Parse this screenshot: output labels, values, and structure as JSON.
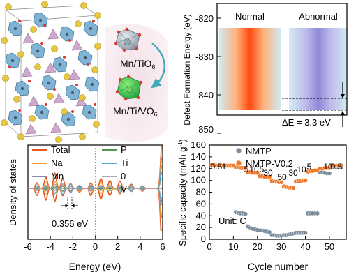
{
  "structure_panel": {
    "label_top": "Mn/TiO",
    "label_top_sub": "6",
    "label_bottom": "Mn/Ti/VO",
    "label_bottom_sub": "6",
    "colors": {
      "octahedron": "#7fb4d6",
      "tetrahedron": "#c9a0c8",
      "sodium": "#e7c840",
      "oxygen": "#d93a2b",
      "highlight": "#33b34a"
    }
  },
  "energy_panel": {
    "ylabel": "Defect Formation Energy (eV)",
    "yticks": [
      "-820",
      "-830",
      "-840",
      "-850"
    ],
    "bar_left_label": "Normal",
    "bar_right_label": "Abnormal",
    "delta_label": "ΔE = 3.3 eV",
    "colors": {
      "normal": "#ff5a1f",
      "abnormal": "#9a95dc",
      "edge": "#cfe9f3"
    }
  },
  "chart_data": [
    {
      "type": "line",
      "xlabel": "Energy (eV)",
      "ylabel": "Density of states",
      "xlim": [
        -6,
        6
      ],
      "xticks": [
        "-6",
        "-4",
        "-2",
        "0",
        "2",
        "4",
        "6"
      ],
      "legend": [
        {
          "name": "Total",
          "color": "#e8571c"
        },
        {
          "name": "Na",
          "color": "#f0a030"
        },
        {
          "name": "Mn",
          "color": "#8a8aa8"
        },
        {
          "name": "P",
          "color": "#4a9a4a"
        },
        {
          "name": "Ti",
          "color": "#4aa8e0"
        },
        {
          "name": "0",
          "color": "#aaaaaa"
        },
        {
          "name": "V",
          "color": "#e8c850"
        }
      ],
      "annotation": "0.356 eV"
    },
    {
      "type": "scatter",
      "xlabel": "Cycle number",
      "ylabel": "Specific capacity (mAh g",
      "ylabel_sup": "-1",
      "ylabel_end": ")",
      "xlim": [
        0,
        57
      ],
      "ylim": [
        0,
        160
      ],
      "xticks": [
        0,
        10,
        20,
        30,
        40,
        50
      ],
      "yticks": [
        0,
        20,
        40,
        60,
        80,
        100,
        120,
        140,
        160
      ],
      "unit_label": "Unit: C",
      "rate_labels": [
        "0.5",
        "1",
        "5",
        "10",
        "5",
        "30",
        "50",
        "30",
        "10",
        "5",
        "10",
        "0.5"
      ],
      "series": [
        {
          "name": "NMTP",
          "color": "#7b8c9c",
          "points": [
            [
              11,
              46
            ],
            [
              12,
              45
            ],
            [
              13,
              44
            ],
            [
              14,
              44
            ],
            [
              15,
              43
            ],
            [
              16,
              22
            ],
            [
              17,
              19
            ],
            [
              18,
              18
            ],
            [
              19,
              17
            ],
            [
              20,
              16
            ],
            [
              21,
              15
            ],
            [
              22,
              15
            ],
            [
              23,
              14
            ],
            [
              24,
              13
            ],
            [
              25,
              12
            ],
            [
              26,
              7
            ],
            [
              27,
              7
            ],
            [
              28,
              6
            ],
            [
              29,
              6
            ],
            [
              30,
              6
            ],
            [
              31,
              7
            ],
            [
              32,
              7
            ],
            [
              33,
              8
            ],
            [
              34,
              9
            ],
            [
              35,
              10
            ],
            [
              36,
              11
            ],
            [
              37,
              11
            ],
            [
              38,
              11
            ],
            [
              39,
              11
            ],
            [
              40,
              11
            ],
            [
              41,
              44
            ],
            [
              42,
              44
            ],
            [
              43,
              44
            ],
            [
              44,
              44
            ],
            [
              45,
              44
            ],
            [
              46,
              114
            ],
            [
              47,
              114
            ],
            [
              48,
              113
            ],
            [
              49,
              112
            ],
            [
              50,
              112
            ],
            [
              51,
              122
            ],
            [
              52,
              122
            ],
            [
              53,
              122
            ],
            [
              54,
              122
            ],
            [
              55,
              122
            ]
          ]
        },
        {
          "name": "NMTP-V0.2",
          "color": "#f07828",
          "points": [
            [
              1,
              126
            ],
            [
              2,
              126
            ],
            [
              3,
              125
            ],
            [
              4,
              125
            ],
            [
              5,
              125
            ],
            [
              6,
              125
            ],
            [
              7,
              125
            ],
            [
              8,
              125
            ],
            [
              9,
              125
            ],
            [
              10,
              125
            ],
            [
              11,
              122
            ],
            [
              12,
              122
            ],
            [
              13,
              121
            ],
            [
              14,
              121
            ],
            [
              15,
              121
            ],
            [
              16,
              114
            ],
            [
              17,
              114
            ],
            [
              18,
              113
            ],
            [
              19,
              113
            ],
            [
              20,
              113
            ],
            [
              21,
              107
            ],
            [
              22,
              107
            ],
            [
              23,
              106
            ],
            [
              24,
              106
            ],
            [
              25,
              106
            ],
            [
              26,
              99
            ],
            [
              27,
              98
            ],
            [
              28,
              98
            ],
            [
              29,
              97
            ],
            [
              30,
              97
            ],
            [
              31,
              90
            ],
            [
              32,
              89
            ],
            [
              33,
              88
            ],
            [
              34,
              88
            ],
            [
              35,
              87
            ],
            [
              36,
              98
            ],
            [
              37,
              99
            ],
            [
              38,
              99
            ],
            [
              39,
              100
            ],
            [
              40,
              100
            ],
            [
              41,
              115
            ],
            [
              42,
              116
            ],
            [
              43,
              116
            ],
            [
              44,
              117
            ],
            [
              45,
              117
            ],
            [
              46,
              120
            ],
            [
              47,
              120
            ],
            [
              48,
              121
            ],
            [
              49,
              121
            ],
            [
              50,
              121
            ],
            [
              51,
              125
            ],
            [
              52,
              125
            ],
            [
              53,
              125
            ],
            [
              54,
              125
            ],
            [
              55,
              125
            ]
          ]
        }
      ]
    }
  ]
}
